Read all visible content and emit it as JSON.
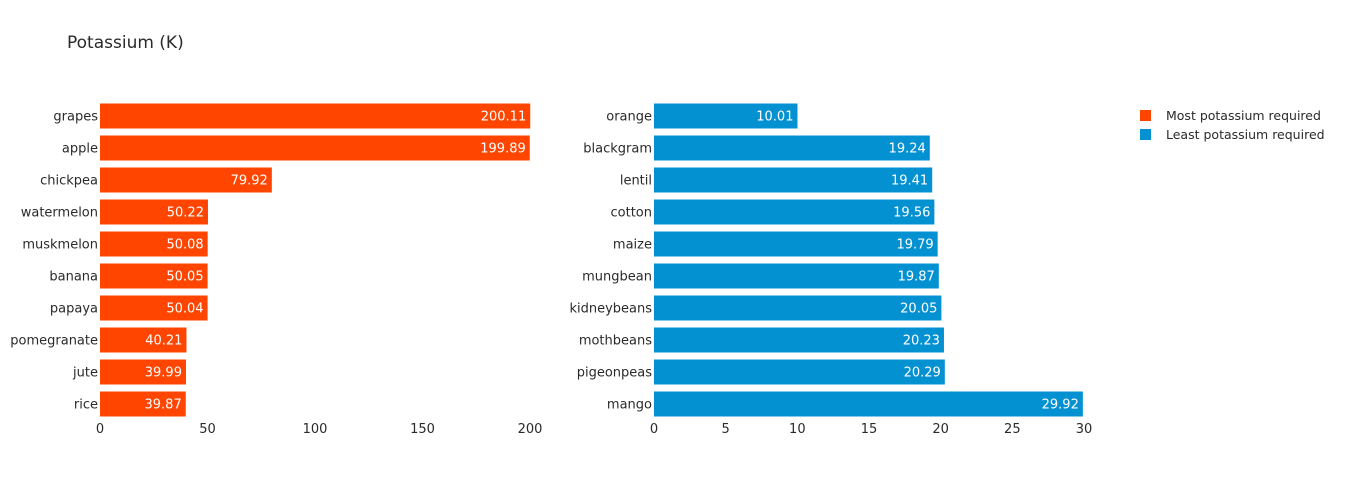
{
  "chart_data": {
    "title": "Potassium (K)",
    "type": "bar",
    "orientation": "horizontal",
    "legend_position": "top-right",
    "grid": false,
    "panels": [
      {
        "name": "Most potassium required",
        "color": "#FF4500",
        "categories": [
          "grapes",
          "apple",
          "chickpea",
          "watermelon",
          "muskmelon",
          "banana",
          "papaya",
          "pomegranate",
          "jute",
          "rice"
        ],
        "values": [
          200.11,
          199.89,
          79.92,
          50.22,
          50.08,
          50.05,
          50.04,
          40.21,
          39.99,
          39.87
        ],
        "value_labels": [
          "200.11",
          "199.89",
          "79.92",
          "50.22",
          "50.08",
          "50.05",
          "50.04",
          "40.21",
          "39.99",
          "39.87"
        ],
        "xlim": [
          0,
          200
        ],
        "xticks": [
          "0",
          "50",
          "100",
          "150",
          "200"
        ]
      },
      {
        "name": "Least potassium required",
        "color": "#0491D1",
        "categories": [
          "orange",
          "blackgram",
          "lentil",
          "cotton",
          "maize",
          "mungbean",
          "kidneybeans",
          "mothbeans",
          "pigeonpeas",
          "mango"
        ],
        "values": [
          10.01,
          19.24,
          19.41,
          19.56,
          19.79,
          19.87,
          20.05,
          20.23,
          20.29,
          29.92
        ],
        "value_labels": [
          "10.01",
          "19.24",
          "19.41",
          "19.56",
          "19.79",
          "19.87",
          "20.05",
          "20.23",
          "20.29",
          "29.92"
        ],
        "xlim": [
          0,
          30
        ],
        "xticks": [
          "0",
          "5",
          "10",
          "15",
          "20",
          "25",
          "30"
        ]
      }
    ]
  }
}
